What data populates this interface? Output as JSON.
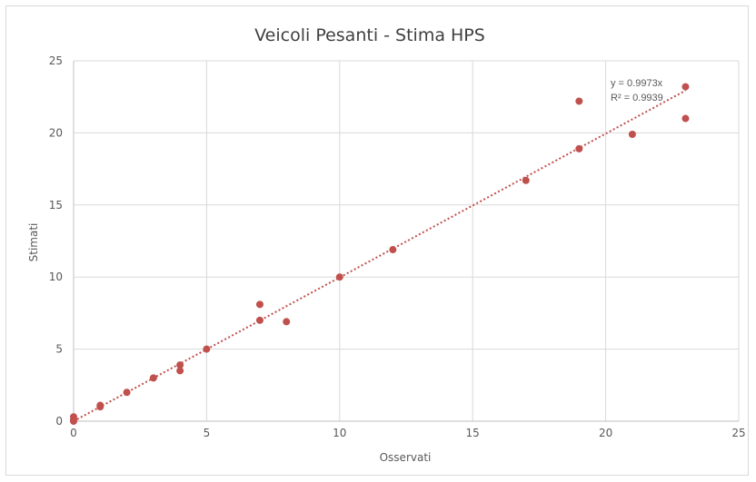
{
  "chart_data": {
    "type": "scatter",
    "title": "Veicoli Pesanti - Stima HPS",
    "xlabel": "Osservati",
    "ylabel": "Stimati",
    "xlim": [
      0,
      25
    ],
    "ylim": [
      0,
      25
    ],
    "xticks": [
      "0",
      "5",
      "10",
      "15",
      "20",
      "25"
    ],
    "yticks": [
      "0",
      "5",
      "10",
      "15",
      "20",
      "25"
    ],
    "grid": true,
    "legend": "none",
    "marker_color": "#c0504d",
    "trendline": {
      "type": "linear-through-origin",
      "slope": 0.9973,
      "style": "dotted",
      "color": "#c0504d",
      "equation": "y = 0.9973x",
      "r_squared": "R² = 0.9939",
      "x_range": [
        0,
        23
      ]
    },
    "points": [
      {
        "x": 0,
        "y": 0.3
      },
      {
        "x": 0,
        "y": 0.1
      },
      {
        "x": 0,
        "y": 0
      },
      {
        "x": 1,
        "y": 1.1
      },
      {
        "x": 1,
        "y": 1.0
      },
      {
        "x": 2,
        "y": 2.0
      },
      {
        "x": 3,
        "y": 3.0
      },
      {
        "x": 4,
        "y": 3.9
      },
      {
        "x": 4,
        "y": 3.5
      },
      {
        "x": 5,
        "y": 5.0
      },
      {
        "x": 7,
        "y": 8.1
      },
      {
        "x": 7,
        "y": 7.0
      },
      {
        "x": 8,
        "y": 6.9
      },
      {
        "x": 10,
        "y": 10.0
      },
      {
        "x": 12,
        "y": 11.9
      },
      {
        "x": 17,
        "y": 16.7
      },
      {
        "x": 19,
        "y": 22.2
      },
      {
        "x": 19,
        "y": 18.9
      },
      {
        "x": 21,
        "y": 19.9
      },
      {
        "x": 23,
        "y": 23.2
      },
      {
        "x": 23,
        "y": 21.0
      }
    ]
  }
}
